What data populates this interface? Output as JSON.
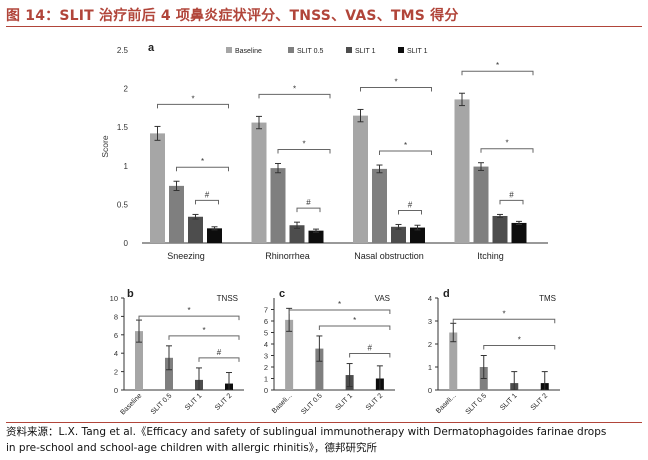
{
  "title": "图 14：SLIT 治疗前后 4 项鼻炎症状评分、TNSS、VAS、TMS 得分",
  "source_line1": "资料来源：L.X. Tang et al.《Efficacy and safety of sublingual immunotherapy with Dermatophagoides farinae drops",
  "source_line2": "in pre-school and school-age children with allergic rhinitis》，德邦研究所",
  "colors": {
    "title": "#b1453a",
    "baseline": "#a6a6a6",
    "slit05": "#7f7f7f",
    "slit1": "#4d4d4d",
    "slit2": "#0d0d0d"
  },
  "chart_data": [
    {
      "type": "bar",
      "panel": "a",
      "ylabel": "Score",
      "ylim": [
        0,
        2.5
      ],
      "yticks": [
        "0",
        "0.5",
        "1",
        "1.5",
        "2",
        "2.5"
      ],
      "legend": [
        "Baseline",
        "SLIT 0.5",
        "SLIT 1",
        "SLIT 1"
      ],
      "legend_position": "top-right",
      "categories": [
        "Sneezing",
        "Rhinorrhea",
        "Nasal obstruction",
        "Itching"
      ],
      "series": [
        {
          "name": "Baseline",
          "values": [
            1.42,
            1.56,
            1.65,
            1.86
          ],
          "err": [
            0.09,
            0.08,
            0.08,
            0.08
          ]
        },
        {
          "name": "SLIT 0.5",
          "values": [
            0.74,
            0.97,
            0.96,
            0.99
          ],
          "err": [
            0.06,
            0.06,
            0.05,
            0.05
          ]
        },
        {
          "name": "SLIT 1",
          "values": [
            0.34,
            0.23,
            0.21,
            0.35
          ],
          "err": [
            0.03,
            0.04,
            0.03,
            0.02
          ]
        },
        {
          "name": "SLIT 1",
          "values": [
            0.19,
            0.16,
            0.2,
            0.26
          ],
          "err": [
            0.02,
            0.02,
            0.03,
            0.02
          ]
        }
      ],
      "annotations": [
        "*",
        "*",
        "#"
      ]
    },
    {
      "type": "bar",
      "panel": "b",
      "label": "TNSS",
      "ylim": [
        0,
        10
      ],
      "yticks": [
        "0",
        "2",
        "4",
        "6",
        "8",
        "10"
      ],
      "categories": [
        "Baseline",
        "SLIT 0.5",
        "SLIT 1",
        "SLIT 2"
      ],
      "values": [
        6.4,
        3.5,
        1.1,
        0.7
      ],
      "err": [
        1.2,
        1.3,
        1.3,
        1.2
      ],
      "annotations": [
        "*",
        "*",
        "#"
      ]
    },
    {
      "type": "bar",
      "panel": "c",
      "label": "VAS",
      "ylim": [
        0,
        8
      ],
      "yticks": [
        "0",
        "1",
        "2",
        "3",
        "4",
        "5",
        "6",
        "7"
      ],
      "categories": [
        "Baseli...",
        "SLIT 0.5",
        "SLIT 1",
        "SLIT 2"
      ],
      "values": [
        6.1,
        3.6,
        1.3,
        1.0
      ],
      "err": [
        1.0,
        1.1,
        1.0,
        1.1
      ],
      "annotations": [
        "*",
        "*",
        "#"
      ]
    },
    {
      "type": "bar",
      "panel": "d",
      "label": "TMS",
      "ylim": [
        0,
        4
      ],
      "yticks": [
        "0",
        "1",
        "2",
        "3",
        "4"
      ],
      "categories": [
        "Baseli...",
        "SLIT 0.5",
        "SLIT 1",
        "SLIT 2"
      ],
      "values": [
        2.5,
        1.0,
        0.3,
        0.3
      ],
      "err": [
        0.4,
        0.5,
        0.5,
        0.5
      ],
      "annotations": [
        "*",
        "*"
      ]
    }
  ]
}
